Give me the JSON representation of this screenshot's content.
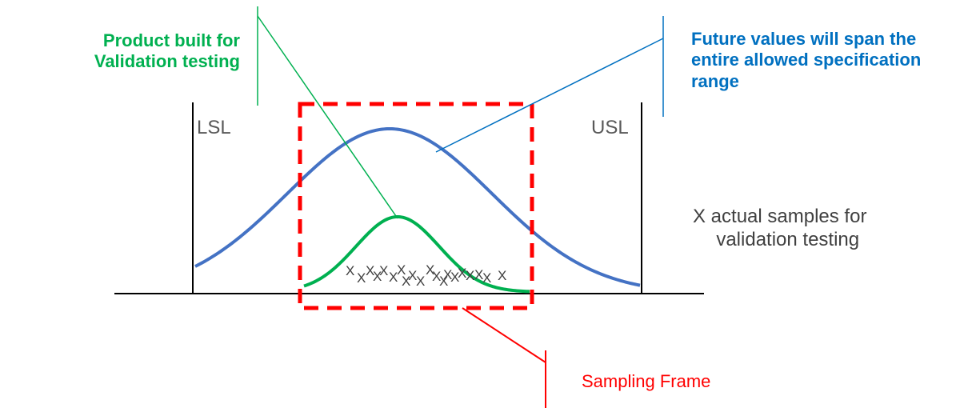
{
  "labels": {
    "product_built_line1": "Product built for",
    "product_built_line2": "Validation testing",
    "future_values_line1": "Future values will span the",
    "future_values_line2": "entire allowed specification",
    "future_values_line3": "range",
    "lsl": "LSL",
    "usl": "USL",
    "samples_line1": "X actual samples for",
    "samples_line2": "validation testing",
    "sampling_frame": "Sampling Frame",
    "sample_mark": "X"
  },
  "colors": {
    "spec_curve": "#4472c4",
    "sample_curve": "#00b050",
    "frame": "#ff0000",
    "limit_lines": "#000000",
    "callout_green": "#00b050",
    "callout_blue": "#0070c0",
    "callout_red": "#ff0000",
    "sample_marks": "#404040"
  },
  "sample_count": 20
}
